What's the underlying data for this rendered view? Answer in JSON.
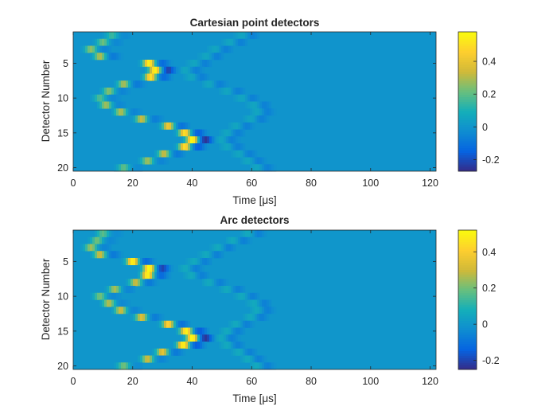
{
  "chart_data": [
    {
      "type": "heatmap",
      "title": "Cartesian point detectors",
      "xlabel": "Time [μs]",
      "ylabel": "Detector Number",
      "xlim": [
        0,
        122
      ],
      "ylim": [
        20.5,
        0.5
      ],
      "xticks": [
        "0",
        "20",
        "40",
        "60",
        "80",
        "100",
        "120"
      ],
      "yticks": [
        "5",
        "10",
        "15",
        "20"
      ],
      "clim": [
        -0.27,
        0.58
      ],
      "colorbar_ticks": [
        "-0.2",
        "0",
        "0.2",
        "0.4"
      ],
      "colormap": "parula",
      "background_value": 0.0,
      "wavefront": {
        "arrival_time_us": [
          13,
          10,
          6,
          9,
          25.5,
          27.5,
          26,
          17,
          12,
          9,
          11,
          16,
          23,
          32,
          37.5,
          40,
          37.5,
          30.5,
          25,
          17
        ],
        "peak_values": [
          0.15,
          0.22,
          0.26,
          0.3,
          0.55,
          0.56,
          0.5,
          0.29,
          0.25,
          0.18,
          0.28,
          0.3,
          0.33,
          0.42,
          0.5,
          0.58,
          0.5,
          0.33,
          0.28,
          0.2
        ],
        "negative_lobe_values": [
          -0.03,
          -0.04,
          -0.05,
          -0.08,
          -0.12,
          -0.22,
          -0.12,
          -0.08,
          -0.05,
          -0.04,
          -0.04,
          -0.05,
          -0.07,
          -0.1,
          -0.15,
          -0.25,
          -0.15,
          -0.08,
          -0.05,
          -0.03
        ],
        "return_time_us": [
          57,
          53,
          48,
          45,
          41,
          38,
          40,
          46,
          52,
          57,
          61,
          62,
          60,
          55,
          52,
          50,
          52,
          56,
          59,
          62
        ]
      }
    },
    {
      "type": "heatmap",
      "title": "Arc detectors",
      "xlabel": "Time [μs]",
      "ylabel": "Detector Number",
      "xlim": [
        0,
        122
      ],
      "ylim": [
        20.5,
        0.5
      ],
      "xticks": [
        "0",
        "20",
        "40",
        "60",
        "80",
        "100",
        "120"
      ],
      "yticks": [
        "5",
        "10",
        "15",
        "20"
      ],
      "clim": [
        -0.25,
        0.52
      ],
      "colorbar_ticks": [
        "-0.2",
        "0",
        "0.2",
        "0.4"
      ],
      "colormap": "parula",
      "background_value": 0.0,
      "wavefront": {
        "arrival_time_us": [
          10,
          8,
          6,
          9,
          20,
          25.5,
          25,
          21,
          14,
          9,
          12,
          16,
          23,
          32,
          38,
          40,
          37,
          30,
          25,
          17
        ],
        "peak_values": [
          0.17,
          0.2,
          0.25,
          0.3,
          0.5,
          0.52,
          0.5,
          0.3,
          0.26,
          0.2,
          0.27,
          0.3,
          0.33,
          0.42,
          0.5,
          0.52,
          0.5,
          0.35,
          0.3,
          0.2
        ],
        "negative_lobe_values": [
          -0.03,
          -0.04,
          -0.05,
          -0.08,
          -0.12,
          -0.2,
          -0.12,
          -0.08,
          -0.05,
          -0.04,
          -0.04,
          -0.05,
          -0.07,
          -0.1,
          -0.15,
          -0.23,
          -0.15,
          -0.08,
          -0.05,
          -0.03
        ],
        "return_time_us": [
          59,
          54,
          49,
          45,
          41,
          38,
          40,
          46,
          52,
          57,
          61,
          62,
          60,
          55,
          52,
          50,
          52,
          56,
          59,
          62
        ]
      }
    }
  ]
}
